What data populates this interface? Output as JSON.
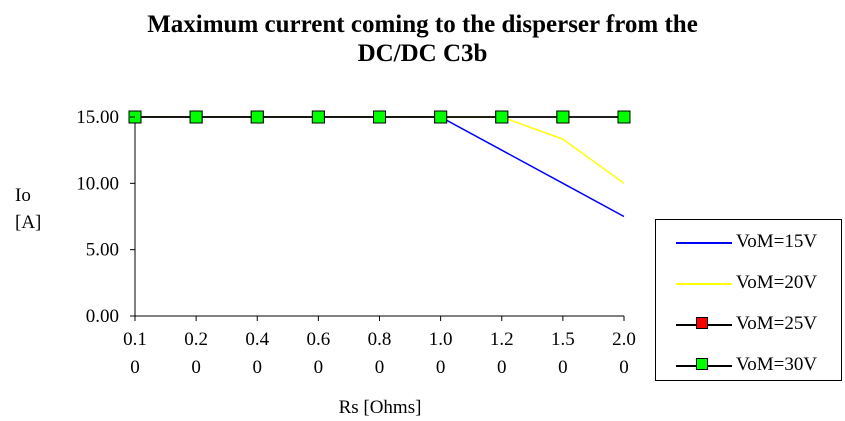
{
  "chart_data": {
    "type": "line",
    "title_lines": [
      "Maximum current coming to the disperser from the",
      "DC/DC C3b"
    ],
    "xlabel": "Rs [Ohms]",
    "ylabel_lines": [
      "Io",
      "[A]"
    ],
    "categories": [
      [
        "0.1",
        "0"
      ],
      [
        "0.2",
        "0"
      ],
      [
        "0.4",
        "0"
      ],
      [
        "0.6",
        "0"
      ],
      [
        "0.8",
        "0"
      ],
      [
        "1.0",
        "0"
      ],
      [
        "1.2",
        "0"
      ],
      [
        "1.5",
        "0"
      ],
      [
        "2.0",
        "0"
      ]
    ],
    "x": [
      0.1,
      0.2,
      0.4,
      0.6,
      0.8,
      1.0,
      1.2,
      1.5,
      2.0
    ],
    "y_ticks": [
      "0.00",
      "5.00",
      "10.00",
      "15.00"
    ],
    "ylim": [
      0,
      15
    ],
    "grid": false,
    "legend_position": "right",
    "series": [
      {
        "name": "VoM=15V",
        "color": "#0000ff",
        "marker": "none",
        "values": [
          15,
          15,
          15,
          15,
          15,
          15,
          12.5,
          10,
          7.5
        ]
      },
      {
        "name": "VoM=20V",
        "color": "#ffff00",
        "marker": "none",
        "values": [
          15,
          15,
          15,
          15,
          15,
          15,
          15,
          13.33,
          10
        ]
      },
      {
        "name": "VoM=25V",
        "color": "#000000",
        "marker": "square",
        "marker_color": "#ff0000",
        "values": [
          15,
          15,
          15,
          15,
          15,
          15,
          15,
          15,
          15
        ]
      },
      {
        "name": "VoM=30V",
        "color": "#000000",
        "marker": "square",
        "marker_color": "#00ff00",
        "values": [
          15,
          15,
          15,
          15,
          15,
          15,
          15,
          15,
          15
        ]
      }
    ]
  }
}
